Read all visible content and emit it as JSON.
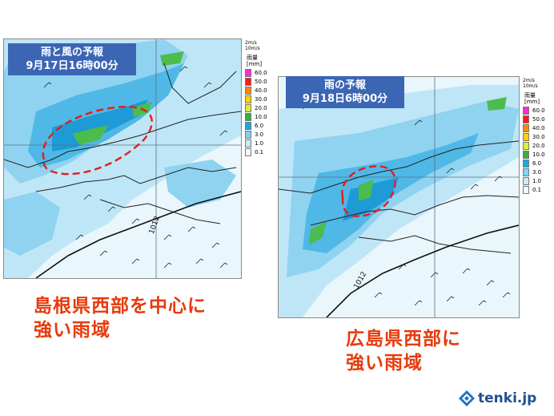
{
  "left_panel": {
    "title_line1": "雨と風の予報",
    "title_line2": "9月17日16時00分",
    "isobar_label": "1012",
    "wind_key_top": "2m/s",
    "wind_key_bottom": "10m/s"
  },
  "right_panel": {
    "title_line1": "雨の予報",
    "title_line2": "9月18日6時00分",
    "isobar_label": "1012",
    "wind_key_top": "2m/s",
    "wind_key_bottom": "10m/s"
  },
  "legend": {
    "title": "雨量",
    "unit": "[mm]",
    "labels": [
      "60.0",
      "50.0",
      "40.0",
      "30.0",
      "20.0",
      "10.0",
      "6.0",
      "3.0",
      "1.0",
      "0.1"
    ],
    "colors": [
      "#ff2bd6",
      "#ff1a1a",
      "#ff8a00",
      "#ffd400",
      "#d9ef3a",
      "#33b233",
      "#19a9e0",
      "#7fd3f2",
      "#c6ecfa",
      "#f2fbff"
    ]
  },
  "captions": {
    "left_line1": "島根県西部を中心に",
    "left_line2": "強い雨域",
    "right_line1": "広島県西部に",
    "right_line2": "強い雨域"
  },
  "logo": {
    "text": "tenki.jp"
  },
  "colors": {
    "title_bg": "#3b66b4",
    "caption": "#e83a0b",
    "highlight_circle": "#e51c1c"
  }
}
